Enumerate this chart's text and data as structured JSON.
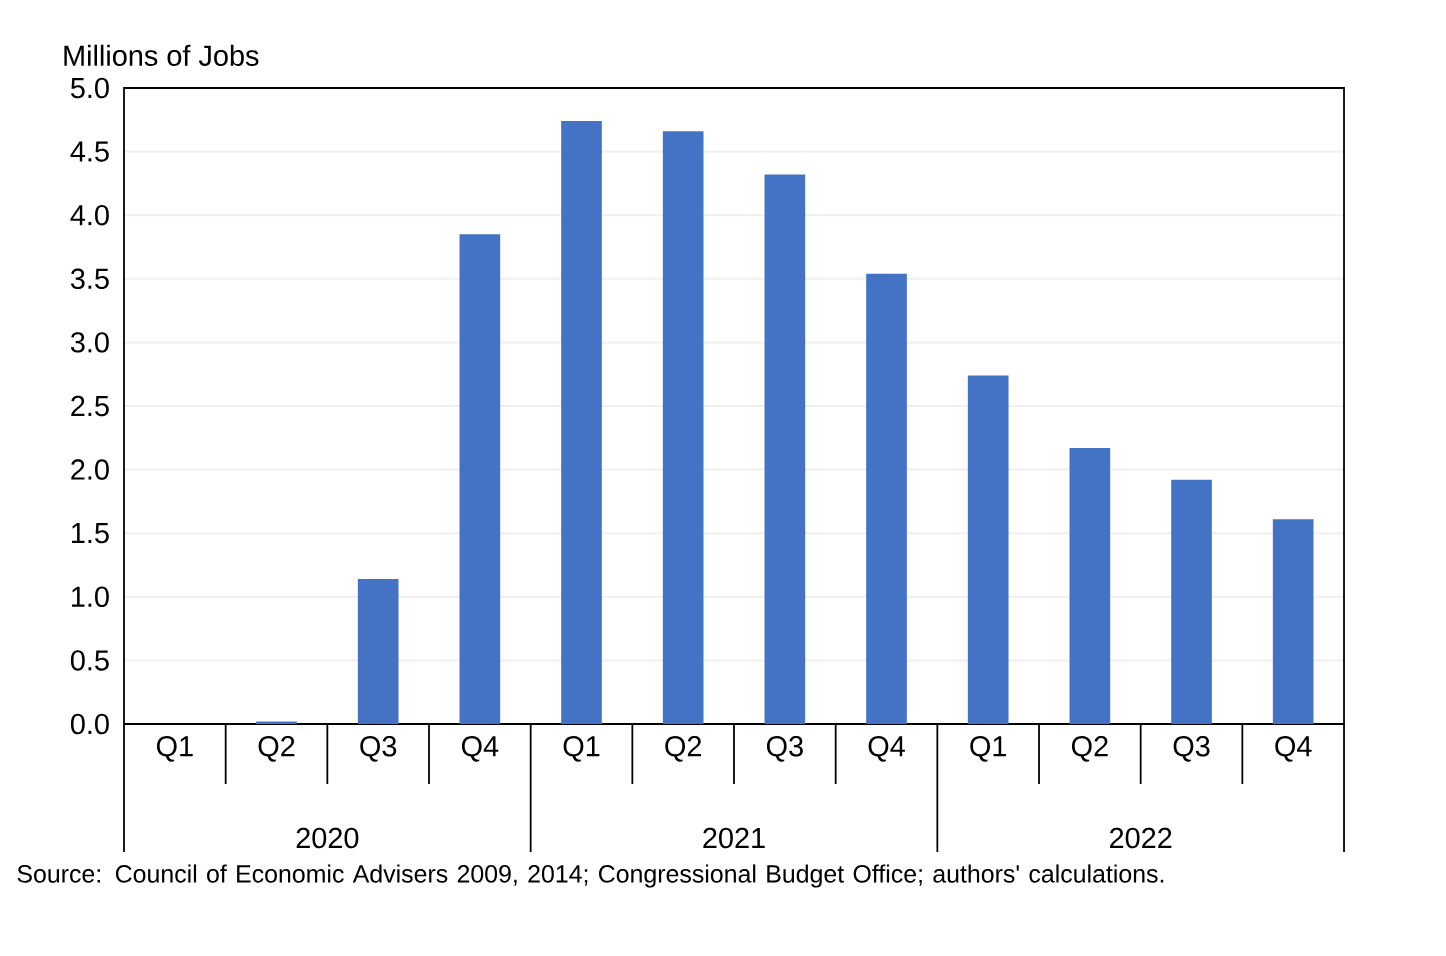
{
  "chart_data": {
    "type": "bar",
    "ylabel": "Millions of Jobs",
    "categories": [
      "Q1",
      "Q2",
      "Q3",
      "Q4",
      "Q1",
      "Q2",
      "Q3",
      "Q4",
      "Q1",
      "Q2",
      "Q3",
      "Q4"
    ],
    "values": [
      0,
      0.02,
      1.14,
      3.85,
      4.74,
      4.66,
      4.32,
      3.54,
      2.74,
      2.17,
      1.92,
      1.61
    ],
    "color": "#4472c4",
    "ylim": [
      0,
      5
    ],
    "yticks": [
      {
        "value": 0,
        "label": "0.0"
      },
      {
        "value": 0.5,
        "label": "0.5"
      },
      {
        "value": 1,
        "label": "1.0"
      },
      {
        "value": 1.5,
        "label": "1.5"
      },
      {
        "value": 2,
        "label": "2.0"
      },
      {
        "value": 2.5,
        "label": "2.5"
      },
      {
        "value": 3,
        "label": "3.0"
      },
      {
        "value": 3.5,
        "label": "3.5"
      },
      {
        "value": 4,
        "label": "4.0"
      },
      {
        "value": 4.5,
        "label": "4.5"
      },
      {
        "value": 5,
        "label": "5.0"
      }
    ],
    "grid": "y",
    "annotations": [
      "2020",
      "2021",
      "2022",
      "Source: Council of Economic Advisers 2009, 2014; Congressional Budget Office; authors' calculations."
    ]
  }
}
